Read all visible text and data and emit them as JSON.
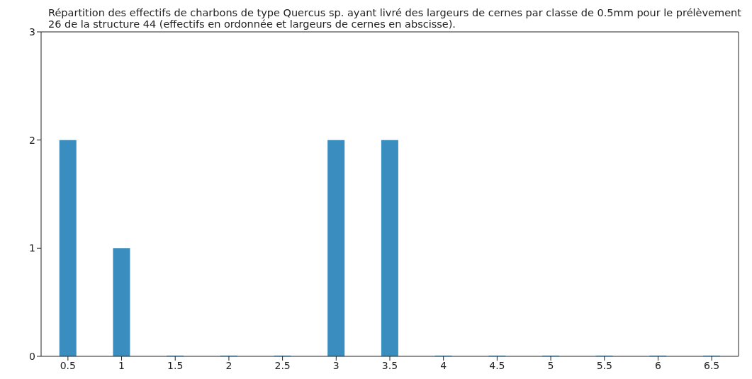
{
  "chart_data": {
    "type": "bar",
    "title": "Répartition des effectifs de charbons de type Quercus sp. ayant livré des largeurs de cernes par classe de 0.5mm pour le prélèvement 26 de la structure 44 (effectifs en ordonnée et largeurs de cernes en abscisse).",
    "categories": [
      "0.5",
      "1",
      "1.5",
      "2",
      "2.5",
      "3",
      "3.5",
      "4",
      "4.5",
      "5",
      "5.5",
      "6",
      "6.5"
    ],
    "values": [
      2,
      1,
      0,
      0,
      0,
      2,
      2,
      0,
      0,
      0,
      0,
      0,
      0
    ],
    "color": "#3a8dbf",
    "ylim": [
      0,
      3
    ],
    "yticks": [
      0,
      1,
      2,
      3
    ],
    "grid": false
  }
}
